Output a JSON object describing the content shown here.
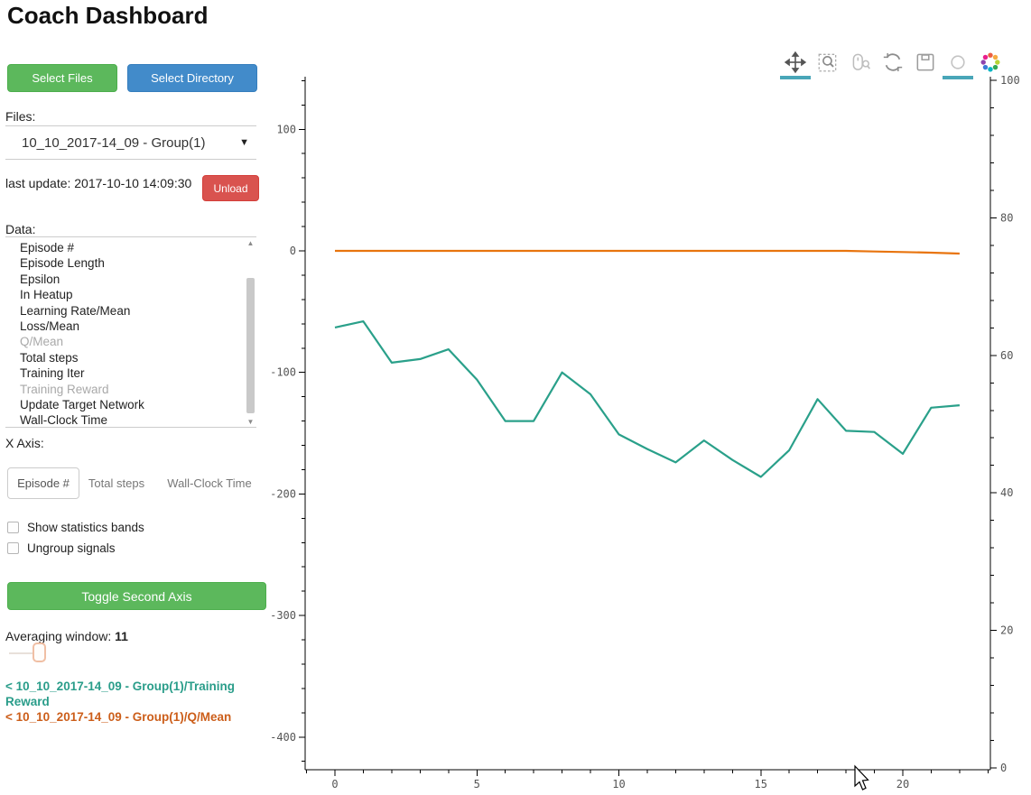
{
  "header": {
    "title": "Coach Dashboard"
  },
  "sidebar": {
    "select_files_label": "Select Files",
    "select_directory_label": "Select Directory",
    "files_label": "Files:",
    "file_selected": "10_10_2017-14_09 - Group(1)",
    "last_update": "last update: 2017-10-10 14:09:30",
    "unload_label": "Unload",
    "data_label": "Data:",
    "data_items": [
      {
        "label": "Episode #",
        "disabled": false
      },
      {
        "label": "Episode Length",
        "disabled": false
      },
      {
        "label": "Epsilon",
        "disabled": false
      },
      {
        "label": "In Heatup",
        "disabled": false
      },
      {
        "label": "Learning Rate/Mean",
        "disabled": false
      },
      {
        "label": "Loss/Mean",
        "disabled": false
      },
      {
        "label": "Q/Mean",
        "disabled": true
      },
      {
        "label": "Total steps",
        "disabled": false
      },
      {
        "label": "Training Iter",
        "disabled": false
      },
      {
        "label": "Training Reward",
        "disabled": true
      },
      {
        "label": "Update Target Network",
        "disabled": false
      },
      {
        "label": "Wall-Clock Time",
        "disabled": false
      }
    ],
    "x_axis_label": "X Axis:",
    "x_axis_tabs": [
      {
        "label": "Episode #",
        "active": true
      },
      {
        "label": "Total steps",
        "active": false
      },
      {
        "label": "Wall-Clock Time",
        "active": false
      }
    ],
    "checkboxes": [
      {
        "label": "Show statistics bands",
        "checked": false
      },
      {
        "label": "Ungroup signals",
        "checked": false
      }
    ],
    "toggle_second_axis_label": "Toggle Second Axis",
    "averaging_window_label": "Averaging window:",
    "averaging_window_value": "11",
    "legend": [
      {
        "label": "< 10_10_2017-14_09 - Group(1)/Training Reward",
        "color": "#2a9d8a"
      },
      {
        "label": "< 10_10_2017-14_09 - Group(1)/Q/Mean",
        "color": "#cc5e1a"
      }
    ]
  },
  "toolbar": {
    "tools": [
      {
        "name": "pan",
        "active": true
      },
      {
        "name": "box-zoom",
        "active": false
      },
      {
        "name": "wheel-zoom",
        "active": false
      },
      {
        "name": "reset",
        "active": false
      },
      {
        "name": "save",
        "active": false
      },
      {
        "name": "hover",
        "active": true
      },
      {
        "name": "bokeh-logo",
        "active": false
      }
    ],
    "active_color": "#49a6b8"
  },
  "chart_data": {
    "type": "line",
    "title": "",
    "xlabel": "",
    "ylabel": "",
    "x": [
      0,
      1,
      2,
      3,
      4,
      5,
      6,
      7,
      8,
      9,
      10,
      11,
      12,
      13,
      14,
      15,
      16,
      17,
      18,
      19,
      20,
      21,
      22
    ],
    "series": [
      {
        "name": "Training Reward",
        "color": "#2aa08a",
        "axis": "left",
        "values": [
          -63,
          -58,
          -92,
          -89,
          -81,
          -106,
          -140,
          -140,
          -100,
          -118,
          -151,
          -163,
          -174,
          -156,
          -172,
          -186,
          -164,
          -122,
          -148,
          -149,
          -167,
          -129,
          -127
        ]
      },
      {
        "name": "Q/Mean",
        "color": "#e8740e",
        "axis": "left",
        "values": [
          0,
          0,
          0,
          0,
          0,
          0,
          0,
          0,
          0,
          0,
          0,
          0,
          0,
          0,
          0,
          0,
          0,
          0,
          0,
          -0.5,
          -1,
          -1.5,
          -2.2
        ]
      }
    ],
    "xlim": [
      -1,
      23
    ],
    "left_ylim": [
      -427,
      143
    ],
    "right_ylim": [
      0,
      100
    ],
    "xticks": [
      0,
      5,
      10,
      15,
      20
    ],
    "left_yticks": [
      100,
      0,
      -100,
      -200,
      -300,
      -400
    ],
    "right_yticks": [
      0,
      20,
      40,
      60,
      80,
      100
    ],
    "grid": false,
    "legend_position": "sidebar-bottom-left"
  }
}
